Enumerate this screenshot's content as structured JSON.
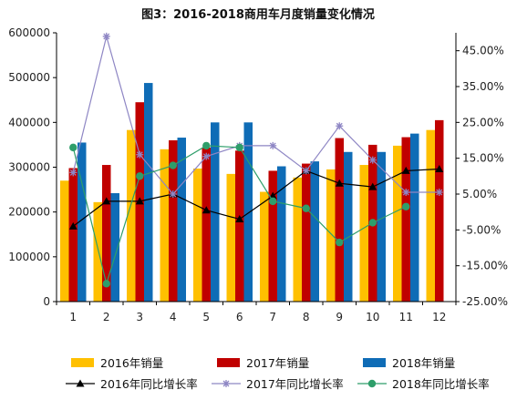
{
  "chart_data": {
    "type": "bar",
    "title": "图3：2016-2018商用车月度销量变化情况",
    "categories": [
      "1",
      "2",
      "3",
      "4",
      "5",
      "6",
      "7",
      "8",
      "9",
      "10",
      "11",
      "12"
    ],
    "ylim": [
      0,
      600000
    ],
    "yticks": [
      "0",
      "100000",
      "200000",
      "300000",
      "400000",
      "500000",
      "600000"
    ],
    "y2lim": [
      -25,
      50
    ],
    "y2ticks": [
      "-25.00%",
      "-15.00%",
      "-5.00%",
      "5.00%",
      "15.00%",
      "25.00%",
      "35.00%",
      "45.00%"
    ],
    "legend_position": "bottom",
    "bar_series": [
      {
        "name": "2016年销量",
        "color": "#ffc000",
        "values": [
          270000,
          222000,
          383000,
          340000,
          297000,
          285000,
          245000,
          277000,
          295000,
          305000,
          348000,
          383000
        ]
      },
      {
        "name": "2017年销量",
        "color": "#c00000",
        "values": [
          298000,
          305000,
          445000,
          360000,
          344000,
          337000,
          292000,
          308000,
          365000,
          350000,
          367000,
          405000
        ]
      },
      {
        "name": "2018年销量",
        "color": "#0f6cb6",
        "values": [
          355000,
          242000,
          488000,
          366000,
          400000,
          400000,
          302000,
          313000,
          334000,
          334000,
          375000,
          null
        ]
      }
    ],
    "line_series": [
      {
        "name": "2016年同比增长率",
        "color": "#000000",
        "marker": "triangle",
        "values": [
          -4.0,
          3.0,
          3.0,
          5.0,
          0.5,
          -2.0,
          4.5,
          11.5,
          8.0,
          7.0,
          11.5,
          12.0
        ]
      },
      {
        "name": "2017年同比增长率",
        "color": "#8e86c4",
        "marker": "star",
        "values": [
          11.0,
          49.0,
          16.0,
          5.0,
          15.5,
          18.5,
          18.5,
          11.5,
          24.0,
          14.5,
          5.5,
          5.5
        ]
      },
      {
        "name": "2018年同比增长率",
        "color": "#2e9e6a",
        "marker": "circle",
        "values": [
          18.0,
          -20.0,
          10.0,
          13.0,
          18.5,
          18.0,
          3.0,
          1.0,
          -8.5,
          -3.0,
          1.5,
          null
        ]
      }
    ]
  }
}
